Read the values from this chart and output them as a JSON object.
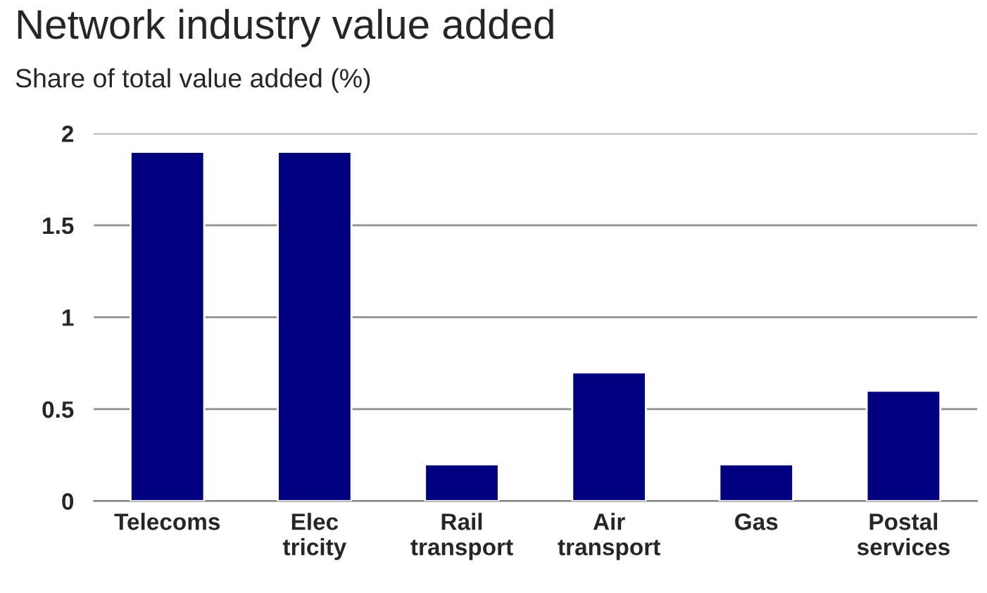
{
  "chart_data": {
    "type": "bar",
    "title": "Network industry value added",
    "subtitle": "Share of total value added (%)",
    "categories": [
      "Telecoms",
      "Elec\ntricity",
      "Rail\ntransport",
      "Air\ntransport",
      "Gas",
      "Postal\nservices"
    ],
    "values": [
      1.9,
      1.9,
      0.2,
      0.7,
      0.2,
      0.6
    ],
    "color": "#000080",
    "ylim": [
      0,
      2
    ],
    "yticks": [
      0,
      0.5,
      1,
      1.5,
      2
    ],
    "grid": "y"
  }
}
